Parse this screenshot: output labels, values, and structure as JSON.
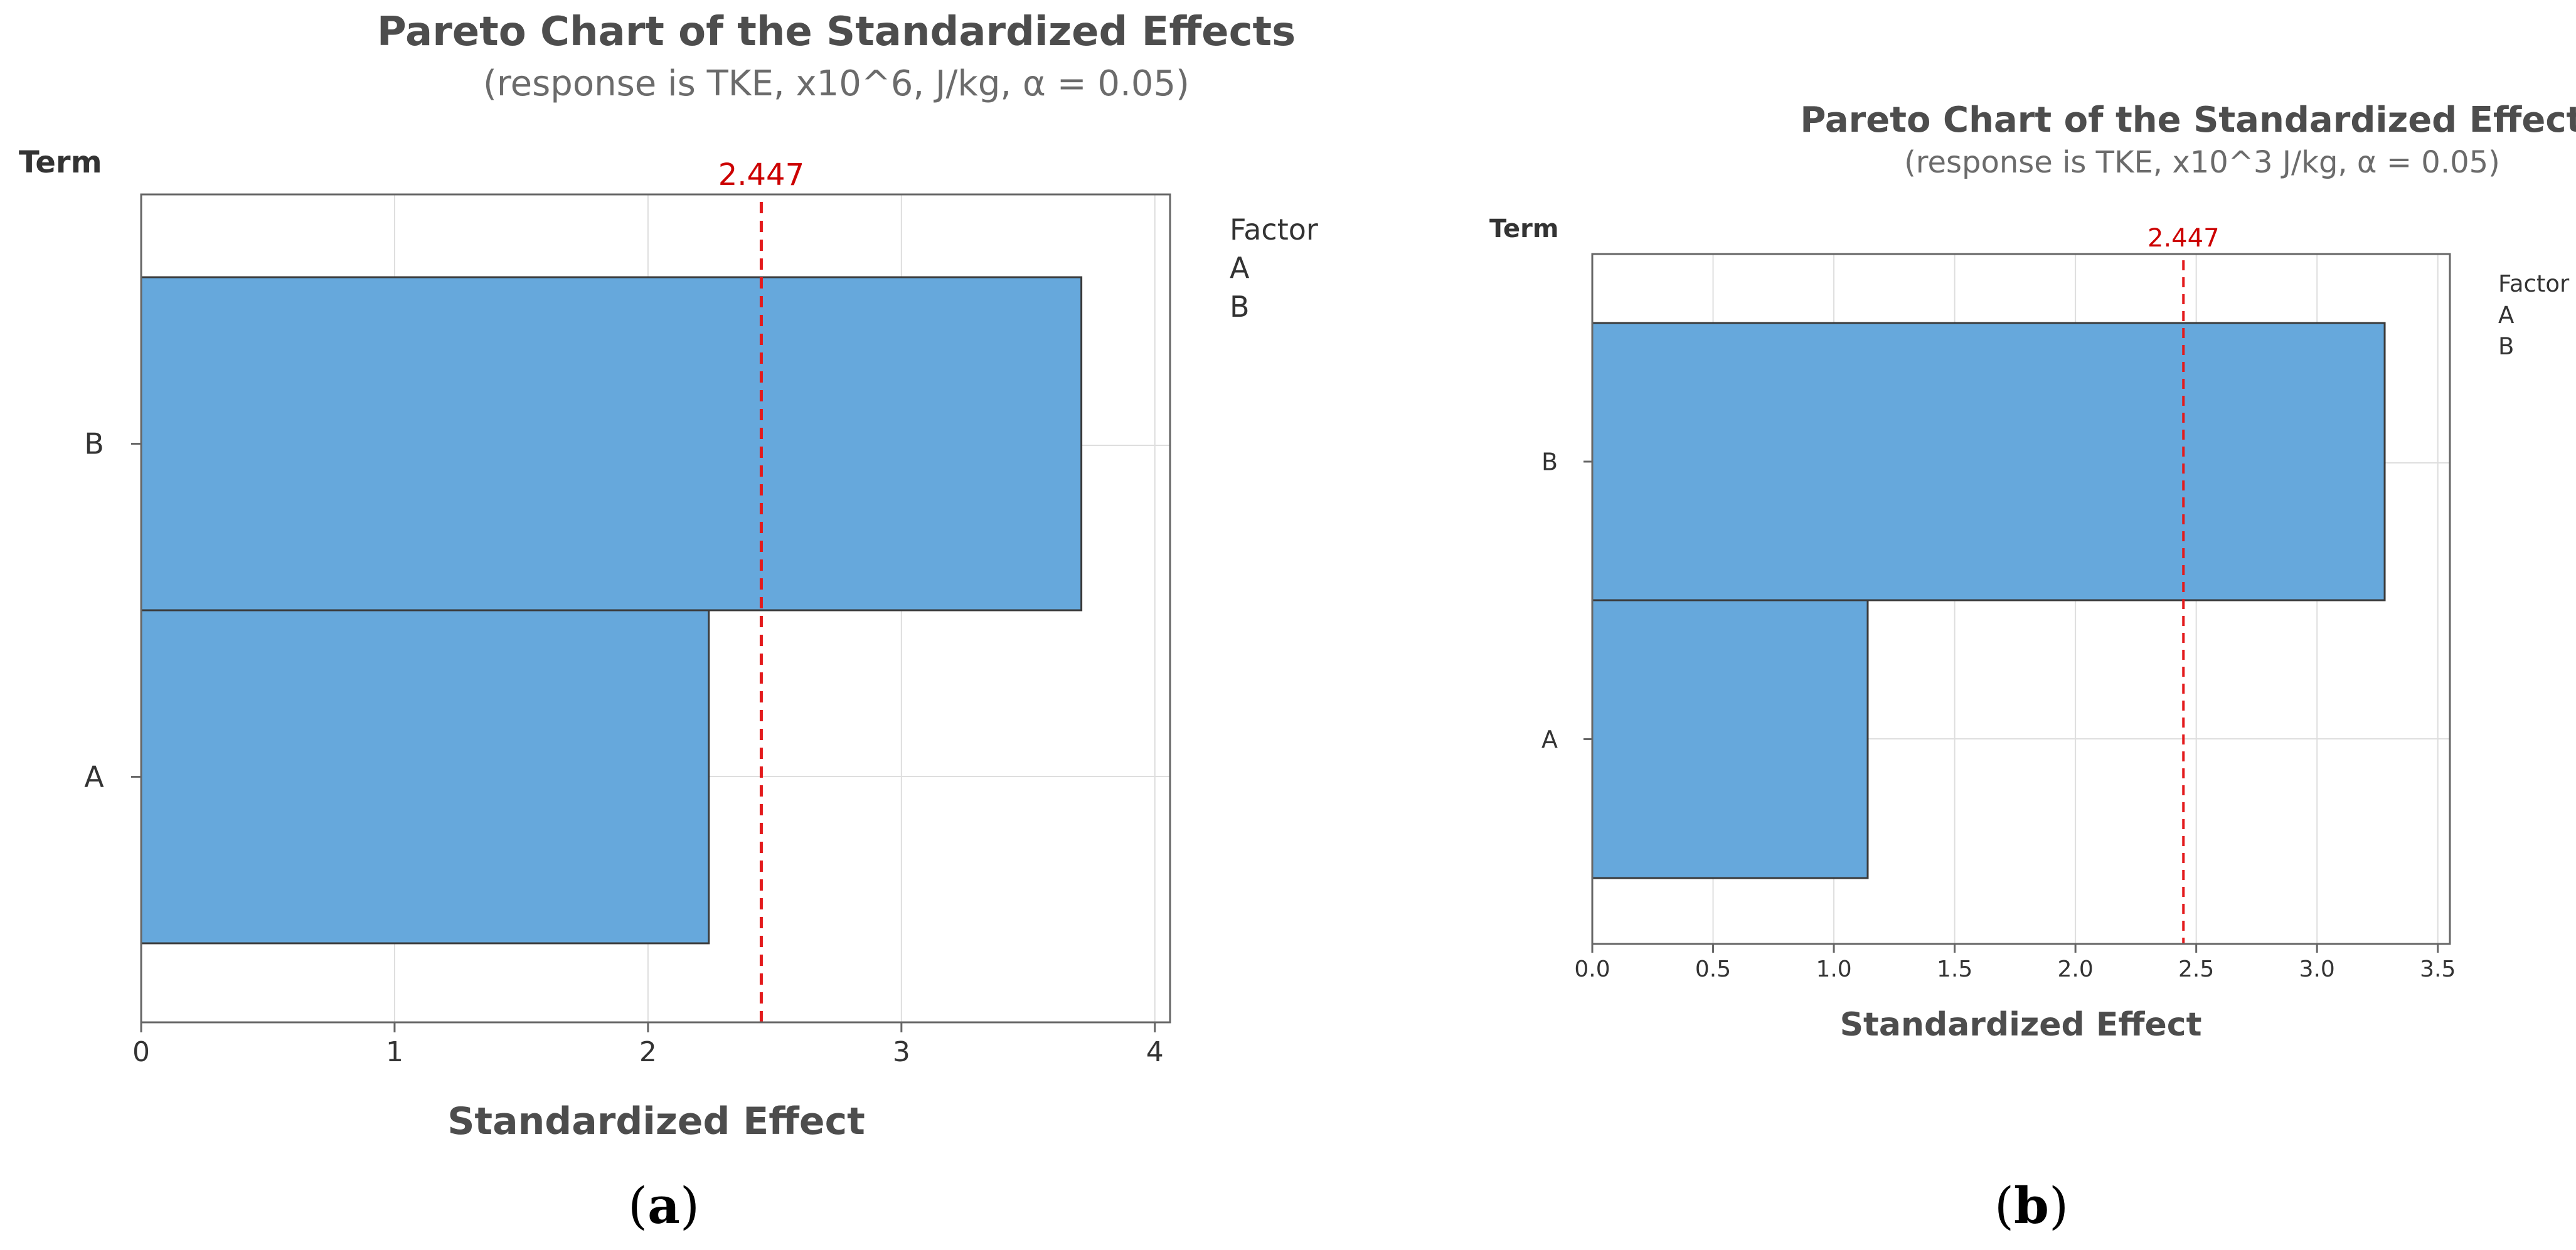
{
  "chart_data": [
    {
      "type": "bar",
      "orientation": "horizontal",
      "title": "Pareto Chart of the Standardized Effects",
      "subtitle": "(response is TKE, x10^6, J/kg, α = 0.05)",
      "ylabel": "Term",
      "xlabel": "Standardized Effect",
      "categories": [
        "B",
        "A"
      ],
      "values": [
        3.71,
        2.24
      ],
      "xlim": [
        0,
        4.06
      ],
      "xticks": [
        0,
        1,
        2,
        3,
        4
      ],
      "xtick_labels": [
        "0",
        "1",
        "2",
        "3",
        "4"
      ],
      "reference_line": {
        "value": 2.447,
        "label": "2.447",
        "color": "#e31a1c"
      },
      "legend": {
        "title": "Factor",
        "items": [
          "A",
          "B"
        ]
      },
      "grid": true,
      "bar_color": "#66a8dc",
      "caption_open": "(",
      "caption_letter": "a",
      "caption_close": ")"
    },
    {
      "type": "bar",
      "orientation": "horizontal",
      "title": "Pareto Chart of the Standardized Effects",
      "subtitle": "(response is TKE, x10^3 J/kg, α = 0.05)",
      "ylabel": "Term",
      "xlabel": "Standardized Effect",
      "categories": [
        "B",
        "A"
      ],
      "values": [
        3.28,
        1.14
      ],
      "xlim": [
        0,
        3.55
      ],
      "xticks": [
        0,
        0.5,
        1,
        1.5,
        2,
        2.5,
        3,
        3.5
      ],
      "xtick_labels": [
        "0.0",
        "0.5",
        "1.0",
        "1.5",
        "2.0",
        "2.5",
        "3.0",
        "3.5"
      ],
      "reference_line": {
        "value": 2.447,
        "label": "2.447",
        "color": "#e31a1c"
      },
      "legend": {
        "title": "Factor",
        "items": [
          "A",
          "B"
        ]
      },
      "grid": true,
      "bar_color": "#66a8dc",
      "caption_open": "(",
      "caption_letter": "b",
      "caption_close": ")"
    }
  ]
}
